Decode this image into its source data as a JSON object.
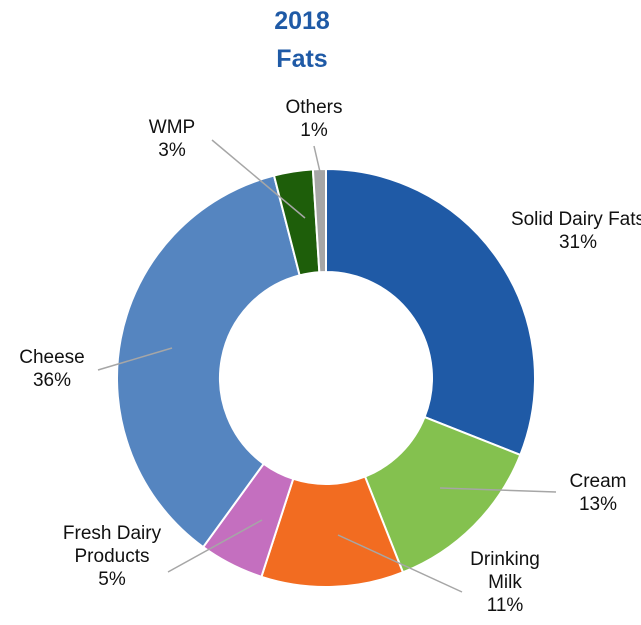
{
  "chart_data": {
    "type": "donut",
    "title": "2018",
    "subtitle": "Fats",
    "categories": [
      "Solid Dairy Fats",
      "Cream",
      "Drinking Milk",
      "Fresh Dairy Products",
      "Cheese",
      "WMP",
      "Others"
    ],
    "values": [
      31,
      13,
      11,
      5,
      36,
      3,
      1
    ],
    "value_labels": [
      "31%",
      "13%",
      "11%",
      "5%",
      "36%",
      "3%",
      "1%"
    ],
    "colors": [
      "#1f5aa6",
      "#84c14f",
      "#f26c21",
      "#c46fbf",
      "#5585c0",
      "#1e5e0a",
      "#a6a6a6"
    ]
  }
}
